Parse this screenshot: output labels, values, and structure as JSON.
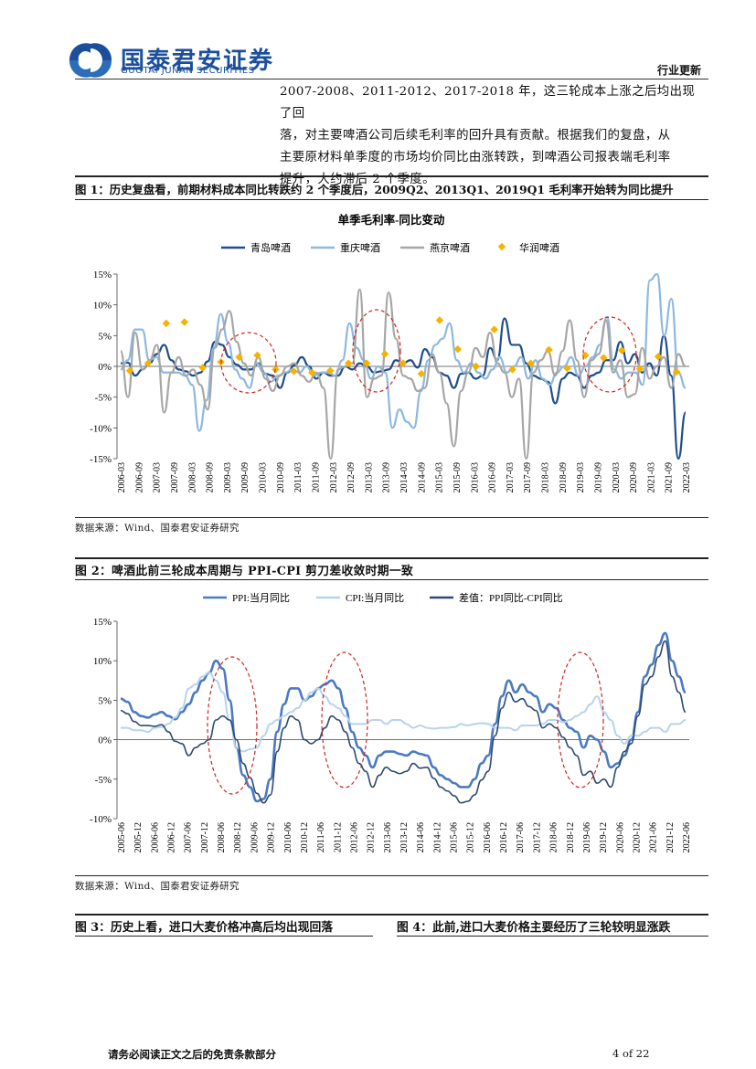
{
  "header": {
    "company_cn": "国泰君安证券",
    "company_en": "GUOTAI JUNAN SECURITIES",
    "section": "行业更新"
  },
  "paragraph": [
    "2007-2008、2011-2012、2017-2018 年，这三轮成本上涨之后均出现了回",
    "落，对主要啤酒公司后续毛利率的回升具有贡献。根据我们的复盘，从",
    "主要原材料单季度的市场均价同比由涨转跌，到啤酒公司报表端毛利率",
    "提升，大约滞后 2 个季度。"
  ],
  "figure1": {
    "title": "图 1：历史复盘看，前期材料成本同比转跌约 2 个季度后，2009Q2、2013Q1、2019Q1 毛利率开始转为同比提升",
    "source": "数据来源：Wind、国泰君安证券研究"
  },
  "figure2": {
    "title": "图 2：啤酒此前三轮成本周期与 PPI-CPI 剪刀差收敛时期一致",
    "source": "数据来源：Wind、国泰君安证券研究"
  },
  "figure3": {
    "title": "图 3：历史上看，进口大麦价格冲高后均出现回落"
  },
  "figure4": {
    "title": "图 4：此前,进口大麦价格主要经历了三轮较明显涨跌"
  },
  "footer": {
    "disclaimer": "请务必阅读正文之后的免责条款部分",
    "page": "4 of 22"
  },
  "chart_data": [
    {
      "type": "line",
      "title": "单季毛利率-同比变动",
      "ylim": [
        -15,
        15
      ],
      "yticks": [
        "15%",
        "10%",
        "5%",
        "0%",
        "-5%",
        "-10%",
        "-15%"
      ],
      "xticks": [
        "2006-03",
        "2006-09",
        "2007-03",
        "2007-09",
        "2008-03",
        "2008-09",
        "2009-03",
        "2009-09",
        "2010-03",
        "2010-09",
        "2011-03",
        "2011-09",
        "2012-03",
        "2012-09",
        "2013-03",
        "2013-09",
        "2014-03",
        "2014-09",
        "2015-03",
        "2015-09",
        "2016-03",
        "2016-09",
        "2017-03",
        "2017-09",
        "2018-03",
        "2018-09",
        "2019-03",
        "2019-09",
        "2020-03",
        "2020-09",
        "2021-03",
        "2021-09",
        "2022-03"
      ],
      "legend": [
        "青岛啤酒",
        "重庆啤酒",
        "燕京啤酒",
        "华润啤酒"
      ],
      "colors": [
        "#1F4E8C",
        "#8DB8E0",
        "#A6A6A6",
        "#F5B300"
      ],
      "series": [
        {
          "name": "青岛啤酒",
          "values": [
            0.5,
            0.6,
            -1.5,
            -0.5,
            0.5,
            2.0,
            3.5,
            1.0,
            -0.5,
            -0.8,
            -1.5,
            -1.0,
            0.8,
            4.0,
            3.5,
            1.5,
            0.3,
            -0.5,
            -0.5,
            0.5,
            -1.2,
            -1.5,
            -3.5,
            -1.0,
            0.2,
            1.5,
            0.0,
            -2.0,
            -1.0,
            -1.5,
            -1.5,
            0.0,
            -0.5,
            0.5,
            0.0,
            -1.0,
            -0.8,
            -0.5,
            1.0,
            0.5,
            1.0,
            -0.2,
            2.8,
            1.5,
            -1.0,
            -1.5,
            -3.5,
            -1.2,
            -1.0,
            -2.0,
            -1.5,
            3.0,
            1.0,
            7.8,
            3.5,
            3.5,
            0.5,
            -1.5,
            -2.0,
            -2.5,
            -6.0,
            -2.0,
            -1.0,
            -1.5,
            -3.5,
            -1.5,
            -1.0,
            1.0,
            1.0,
            4.0,
            0.5,
            2.0,
            -1.0,
            0.5,
            -1.5,
            5.0,
            -1.5,
            -15,
            -7.5
          ]
        },
        {
          "name": "重庆啤酒",
          "values": [
            -0.5,
            1.0,
            6.0,
            6.0,
            1.0,
            1.5,
            -1.0,
            -1.0,
            -1.0,
            -1.5,
            -3.0,
            -10.5,
            -5.5,
            3.0,
            8.5,
            4.0,
            -0.5,
            -2.0,
            -3.5,
            0.5,
            -1.0,
            -2.5,
            -1.5,
            -1.0,
            -0.5,
            -1.0,
            0.0,
            -1.5,
            -1.0,
            -1.0,
            -1.5,
            1.0,
            7.0,
            3.0,
            1.0,
            -2.0,
            0.0,
            -1.0,
            -10.0,
            -7.0,
            -9.0,
            -10.0,
            -4.0,
            1.0,
            3.5,
            4.5,
            7.0,
            1.0,
            -1.0,
            0.5,
            -1.0,
            -2.0,
            -0.5,
            1.5,
            -1.0,
            0.0,
            1.5,
            -2.0,
            1.0,
            -2.0,
            -3.0,
            -1.0,
            0.0,
            1.5,
            -1.5,
            0.0,
            1.5,
            3.5,
            8.0,
            -0.5,
            -2.0,
            -1.0,
            -1.0,
            -3.0,
            14.0,
            15,
            5.0,
            11.0,
            -1.0,
            -3.5
          ]
        },
        {
          "name": "燕京啤酒",
          "values": [
            2.5,
            -5.0,
            5.5,
            -0.5,
            1.0,
            3.5,
            -7.5,
            -1.0,
            1.5,
            -1.5,
            -0.5,
            -3.0,
            -7.0,
            3.0,
            6.0,
            9.0,
            4.0,
            0.5,
            -1.5,
            1.5,
            -2.0,
            -4.0,
            -1.5,
            0.0,
            0.5,
            -1.5,
            -2.5,
            -1.0,
            -3.5,
            -15,
            -0.5,
            0.0,
            0.5,
            12.5,
            -5.0,
            -2.0,
            -1.5,
            12.0,
            4.5,
            -1.5,
            -2.0,
            -4.0,
            -3.5,
            2.0,
            -1.0,
            -6.0,
            -13.0,
            -4.0,
            -1.0,
            3.0,
            1.5,
            5.5,
            0.5,
            -1.0,
            -5.0,
            -2.0,
            -15,
            -1.0,
            1.0,
            2.5,
            -1.5,
            2.5,
            7.5,
            1.0,
            -5.0,
            1.0,
            2.0,
            7.5,
            -1.0,
            1.0,
            -5.0,
            -4.5,
            3.0,
            -2.0,
            0.0,
            1.5,
            -3.5,
            2.0,
            0.0
          ]
        },
        {
          "name": "华润啤酒",
          "x_index": [
            1,
            3,
            5,
            7,
            9,
            11,
            13,
            15,
            17,
            19,
            21,
            23,
            25,
            27,
            29,
            31,
            33,
            35,
            37,
            39,
            41,
            43,
            45,
            47,
            49,
            51,
            53,
            55,
            57,
            59,
            61
          ],
          "values": [
            -0.7,
            0.5,
            7.0,
            7.2,
            -0.2,
            0.7,
            1.5,
            1.8,
            -0.5,
            -0.8,
            -1.0,
            -0.7,
            0.5,
            0.5,
            2.0,
            0.5,
            -1.2,
            7.5,
            2.8,
            0.0,
            6.0,
            -0.5,
            0.5,
            2.7,
            -0.3,
            1.8,
            1.4,
            2.6,
            -0.4,
            1.6,
            -0.9
          ]
        }
      ]
    },
    {
      "type": "line",
      "ylim": [
        -10,
        15
      ],
      "yticks": [
        "15%",
        "10%",
        "5%",
        "0%",
        "-5%",
        "-10%"
      ],
      "xticks": [
        "2005-06",
        "2005-12",
        "2006-06",
        "2006-12",
        "2007-06",
        "2007-12",
        "2008-06",
        "2008-12",
        "2009-06",
        "2009-12",
        "2010-06",
        "2010-12",
        "2011-06",
        "2011-12",
        "2012-06",
        "2012-12",
        "2013-06",
        "2013-12",
        "2014-06",
        "2014-12",
        "2015-06",
        "2015-12",
        "2016-06",
        "2016-12",
        "2017-06",
        "2017-12",
        "2018-06",
        "2018-12",
        "2019-06",
        "2019-12",
        "2020-06",
        "2020-12",
        "2021-06",
        "2021-12",
        "2022-06"
      ],
      "legend": [
        "PPI:当月同比",
        "CPI:当月同比",
        "差值：PPI同比-CPI同比"
      ],
      "colors": [
        "#4A7AC0",
        "#B7D3EE",
        "#2E4A72"
      ],
      "series": [
        {
          "name": "PPI:当月同比",
          "values": [
            5.2,
            4.8,
            3.5,
            3.0,
            2.8,
            3.2,
            3.5,
            3.0,
            2.6,
            3.5,
            4.5,
            6.0,
            7.5,
            8.5,
            10.0,
            9.0,
            5.0,
            -1.0,
            -4.5,
            -6.0,
            -7.8,
            -7.5,
            -5.0,
            1.0,
            4.5,
            6.5,
            6.5,
            5.0,
            5.5,
            6.5,
            7.0,
            7.5,
            6.5,
            4.0,
            1.0,
            -1.0,
            -2.0,
            -3.5,
            -2.0,
            -1.5,
            -1.5,
            -1.8,
            -2.0,
            -1.5,
            -1.8,
            -2.0,
            -3.5,
            -4.5,
            -5.0,
            -5.5,
            -6.0,
            -6.0,
            -5.0,
            -3.0,
            -2.0,
            2.0,
            5.5,
            7.5,
            6.0,
            7.0,
            6.0,
            5.5,
            3.5,
            4.5,
            4.0,
            2.5,
            1.5,
            1.0,
            -1.0,
            0.5,
            0.0,
            -1.5,
            -3.5,
            -3.0,
            -2.0,
            0.0,
            3.5,
            8.0,
            9.5,
            12.0,
            13.5,
            10.0,
            8.0,
            6.0
          ]
        },
        {
          "name": "CPI:当月同比",
          "values": [
            1.5,
            1.5,
            1.2,
            1.2,
            1.0,
            1.5,
            1.6,
            2.0,
            2.8,
            4.0,
            6.5,
            7.0,
            8.0,
            8.5,
            7.5,
            6.0,
            2.5,
            -1.0,
            -1.5,
            -1.2,
            -1.0,
            0.5,
            2.0,
            2.5,
            3.0,
            3.5,
            4.0,
            5.0,
            6.0,
            6.5,
            5.5,
            4.5,
            4.0,
            3.0,
            2.0,
            2.0,
            2.0,
            2.5,
            2.5,
            2.0,
            2.5,
            2.5,
            2.0,
            1.5,
            1.8,
            1.5,
            1.4,
            1.5,
            1.5,
            1.6,
            2.0,
            1.8,
            2.0,
            2.1,
            2.0,
            1.5,
            1.5,
            1.5,
            1.2,
            1.8,
            1.8,
            1.8,
            2.0,
            2.5,
            2.5,
            2.2,
            2.5,
            3.0,
            3.5,
            4.5,
            5.5,
            3.5,
            2.5,
            0.5,
            -0.5,
            0.5,
            0.5,
            1.0,
            1.5,
            1.5,
            1.0,
            2.0,
            2.0,
            2.5
          ]
        },
        {
          "name": "差值：PPI同比-CPI同比",
          "values": [
            3.7,
            3.3,
            2.3,
            1.8,
            1.8,
            1.7,
            1.9,
            1.0,
            -0.2,
            -0.5,
            -2.0,
            -1.0,
            -0.5,
            0.0,
            2.5,
            3.0,
            2.5,
            0.0,
            -3.0,
            -4.8,
            -6.8,
            -8.0,
            -7.0,
            -1.5,
            1.5,
            3.0,
            2.5,
            0.0,
            -0.5,
            0.0,
            1.5,
            3.0,
            2.5,
            1.0,
            -1.0,
            -3.0,
            -4.0,
            -6.0,
            -4.5,
            -3.5,
            -4.0,
            -4.3,
            -4.0,
            -3.0,
            -3.6,
            -3.5,
            -4.9,
            -6.0,
            -6.5,
            -7.1,
            -8.0,
            -7.8,
            -7.0,
            -5.1,
            -4.0,
            0.5,
            4.0,
            6.0,
            4.8,
            5.2,
            4.2,
            3.7,
            1.5,
            2.0,
            1.5,
            0.3,
            -1.0,
            -2.0,
            -4.5,
            -4.0,
            -5.5,
            -5.0,
            -6.0,
            -3.5,
            -1.5,
            -0.5,
            3.0,
            7.0,
            8.0,
            10.5,
            12.5,
            8.0,
            6.0,
            3.5
          ]
        }
      ]
    }
  ]
}
